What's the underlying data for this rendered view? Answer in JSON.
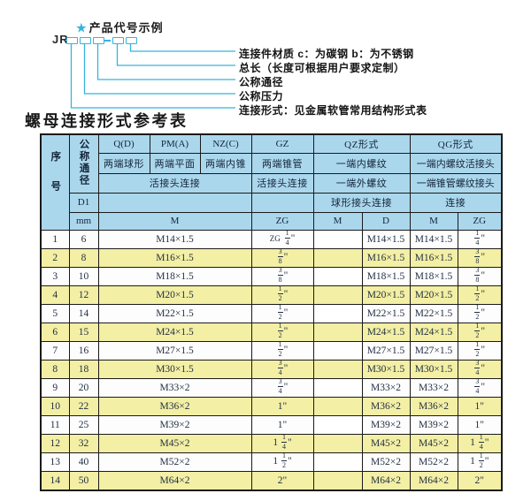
{
  "colors": {
    "accent": "#35b4de",
    "header_bg": "#abd7ec",
    "row_alt_bg": "#f3efa4"
  },
  "diagram": {
    "star": "★",
    "title": "产品代号示例",
    "code_prefix": "JR",
    "labels": [
      "连接件材质  c：为碳钢  b：为不锈钢",
      "总长（长度可根据用户要求定制）",
      "公称通径",
      "公称压力",
      "连接形式：见金属软管常用结构形式表"
    ]
  },
  "heading": "螺母连接形式参考表",
  "table": {
    "header": {
      "col_no": "序号",
      "col_dn": "公称通径",
      "d1": "D1",
      "mm": "mm",
      "q": "Q(D)",
      "pm": "PM(A)",
      "nz": "NZ(C)",
      "gz": "GZ",
      "qz": "QZ形式",
      "qg": "QG形式",
      "q_sub": "两端球形",
      "pm_sub": "两端平面",
      "nz_sub": "两端内锥",
      "gz_sub": "两端锥管",
      "qz_sub1": "一端内螺纹",
      "qg_sub1": "一端内螺纹活接头",
      "left_conn": "活接头连接",
      "gz_conn": "活接头连接",
      "qz_sub2": "一端外螺纹",
      "qg_sub2": "一端锥管螺纹接头",
      "qz_conn": "球形接头连接",
      "qg_conn": "连接",
      "m": "M",
      "zg": "ZG",
      "qz_m": "M",
      "qz_d": "D",
      "qg_m": "M",
      "qg_zg": "ZG"
    },
    "rows": [
      {
        "no": "1",
        "dn": "6",
        "m": "M14×1.5",
        "gz_zg": "ZG {1/4}\"",
        "qz_m": "",
        "qz_d": "M14×1.5",
        "qg_m": "M14×1.5",
        "qg_zg": "{1/4}\""
      },
      {
        "no": "2",
        "dn": "8",
        "m": "M16×1.5",
        "gz_zg": "{3/8}\"",
        "qz_m": "",
        "qz_d": "M16×1.5",
        "qg_m": "M16×1.5",
        "qg_zg": "{3/8}\""
      },
      {
        "no": "3",
        "dn": "10",
        "m": "M18×1.5",
        "gz_zg": "{3/8}\"",
        "qz_m": "",
        "qz_d": "M18×1.5",
        "qg_m": "M18×1.5",
        "qg_zg": "{3/8}\""
      },
      {
        "no": "4",
        "dn": "12",
        "m": "M20×1.5",
        "gz_zg": "{1/2}\"",
        "qz_m": "",
        "qz_d": "M20×1.5",
        "qg_m": "M20×1.5",
        "qg_zg": "{1/2}\""
      },
      {
        "no": "5",
        "dn": "14",
        "m": "M22×1.5",
        "gz_zg": "{1/2}\"",
        "qz_m": "",
        "qz_d": "M22×1.5",
        "qg_m": "M22×1.5",
        "qg_zg": "{1/2}\""
      },
      {
        "no": "6",
        "dn": "15",
        "m": "M24×1.5",
        "gz_zg": "{1/2}\"",
        "qz_m": "",
        "qz_d": "M24×1.5",
        "qg_m": "M24×1.5",
        "qg_zg": "{1/2}\""
      },
      {
        "no": "7",
        "dn": "16",
        "m": "M27×1.5",
        "gz_zg": "{1/2}\"",
        "qz_m": "",
        "qz_d": "M27×1.5",
        "qg_m": "M27×1.5",
        "qg_zg": "{1/2}\""
      },
      {
        "no": "8",
        "dn": "18",
        "m": "M30×1.5",
        "gz_zg": "{3/4}\"",
        "qz_m": "",
        "qz_d": "M30×1.5",
        "qg_m": "M30×1.5",
        "qg_zg": "{3/4}\""
      },
      {
        "no": "9",
        "dn": "20",
        "m": "M33×2",
        "gz_zg": "{3/4}\"",
        "qz_m": "",
        "qz_d": "M33×2",
        "qg_m": "M33×2",
        "qg_zg": "{3/4}\""
      },
      {
        "no": "10",
        "dn": "22",
        "m": "M36×2",
        "gz_zg": "1\"",
        "qz_m": "",
        "qz_d": "M36×2",
        "qg_m": "M36×2",
        "qg_zg": "1\""
      },
      {
        "no": "11",
        "dn": "25",
        "m": "M39×2",
        "gz_zg": "1\"",
        "qz_m": "",
        "qz_d": "M39×2",
        "qg_m": "M39×2",
        "qg_zg": "1\""
      },
      {
        "no": "12",
        "dn": "32",
        "m": "M45×2",
        "gz_zg": "1 {1/4}\"",
        "qz_m": "",
        "qz_d": "M45×2",
        "qg_m": "M45×2",
        "qg_zg": "1 {1/4}\""
      },
      {
        "no": "13",
        "dn": "40",
        "m": "M52×2",
        "gz_zg": "1 {1/2}\"",
        "qz_m": "",
        "qz_d": "M52×2",
        "qg_m": "M52×2",
        "qg_zg": "1 {1/2}\""
      },
      {
        "no": "14",
        "dn": "50",
        "m": "M64×2",
        "gz_zg": "2\"",
        "qz_m": "",
        "qz_d": "M64×2",
        "qg_m": "M64×2",
        "qg_zg": "2\""
      }
    ]
  }
}
